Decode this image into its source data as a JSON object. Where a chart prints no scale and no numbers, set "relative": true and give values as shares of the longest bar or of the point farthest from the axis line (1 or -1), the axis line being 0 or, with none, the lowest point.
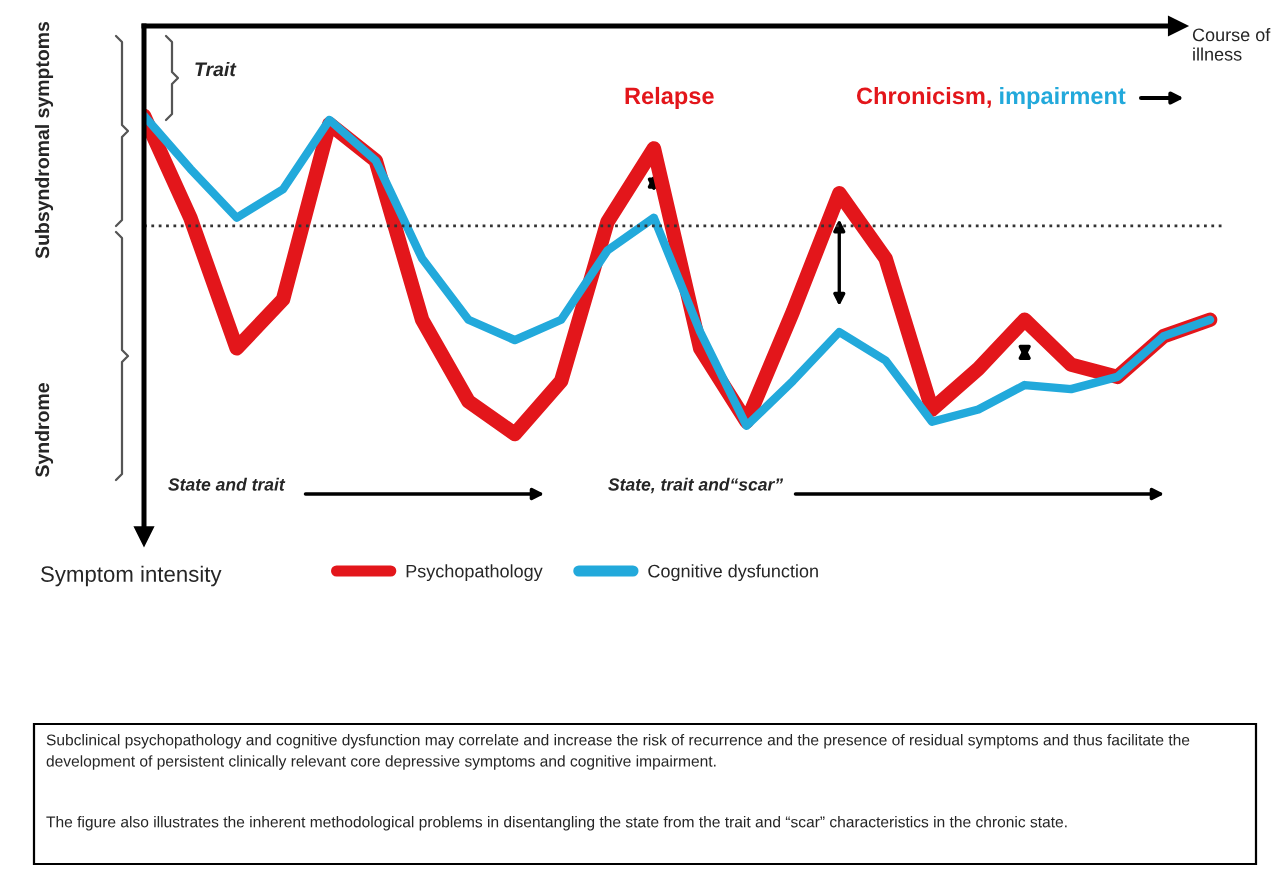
{
  "chart_data": {
    "type": "line",
    "relative": true,
    "legend": "bottom",
    "line_style": "solid",
    "marker": "none",
    "categories": [
      null,
      null,
      null,
      null,
      null,
      null,
      null,
      null,
      null,
      null,
      null,
      null,
      null,
      null,
      null,
      null,
      null,
      null,
      null,
      null,
      null,
      null,
      null,
      null
    ],
    "series": [
      {
        "name": "Psychopathology",
        "color": "#e3161b",
        "values": [
          -0.22,
          -0.47,
          -0.79,
          -0.67,
          -0.24,
          -0.33,
          -0.72,
          -0.92,
          -1,
          -0.87,
          -0.48,
          -0.3,
          -0.79,
          -0.97,
          -0.7,
          -0.41,
          -0.57,
          -0.94,
          -0.84,
          -0.72,
          -0.83,
          -0.86,
          -0.76,
          -0.72
        ]
      },
      {
        "name": "Cognitive dysfunction",
        "color": "#22a9db",
        "values": [
          -0.22,
          -0.35,
          -0.47,
          -0.4,
          -0.23,
          -0.33,
          -0.57,
          -0.72,
          -0.77,
          -0.72,
          -0.55,
          -0.47,
          -0.75,
          -0.98,
          -0.87,
          -0.75,
          -0.82,
          -0.97,
          -0.94,
          -0.88,
          -0.89,
          -0.86,
          -0.76,
          -0.72
        ]
      }
    ],
    "ref_lines": [
      {
        "axis": "y",
        "value": -0.49,
        "color": "#333333",
        "line_style": "dotted"
      }
    ],
    "annotations": [
      "Symptom intensity",
      "Trait",
      "Relapse",
      "Chronicism,",
      "impairment",
      "Course of illness",
      "Subsyndromal symptoms",
      "Syndrome",
      "State and trait",
      "State, trait and“scar”",
      "Subclinical psychopathology and cognitive dysfunction may correlate and increase the risk of recurrence and the presence of residual symptoms and thus facilitate the development of persistent clinically relevant core depressive symptoms and cognitive impairment.",
      "The figure also illustrates the inherent methodological problems in disentangling the state from the trait and “scar” characteristics in the chronic state."
    ]
  }
}
